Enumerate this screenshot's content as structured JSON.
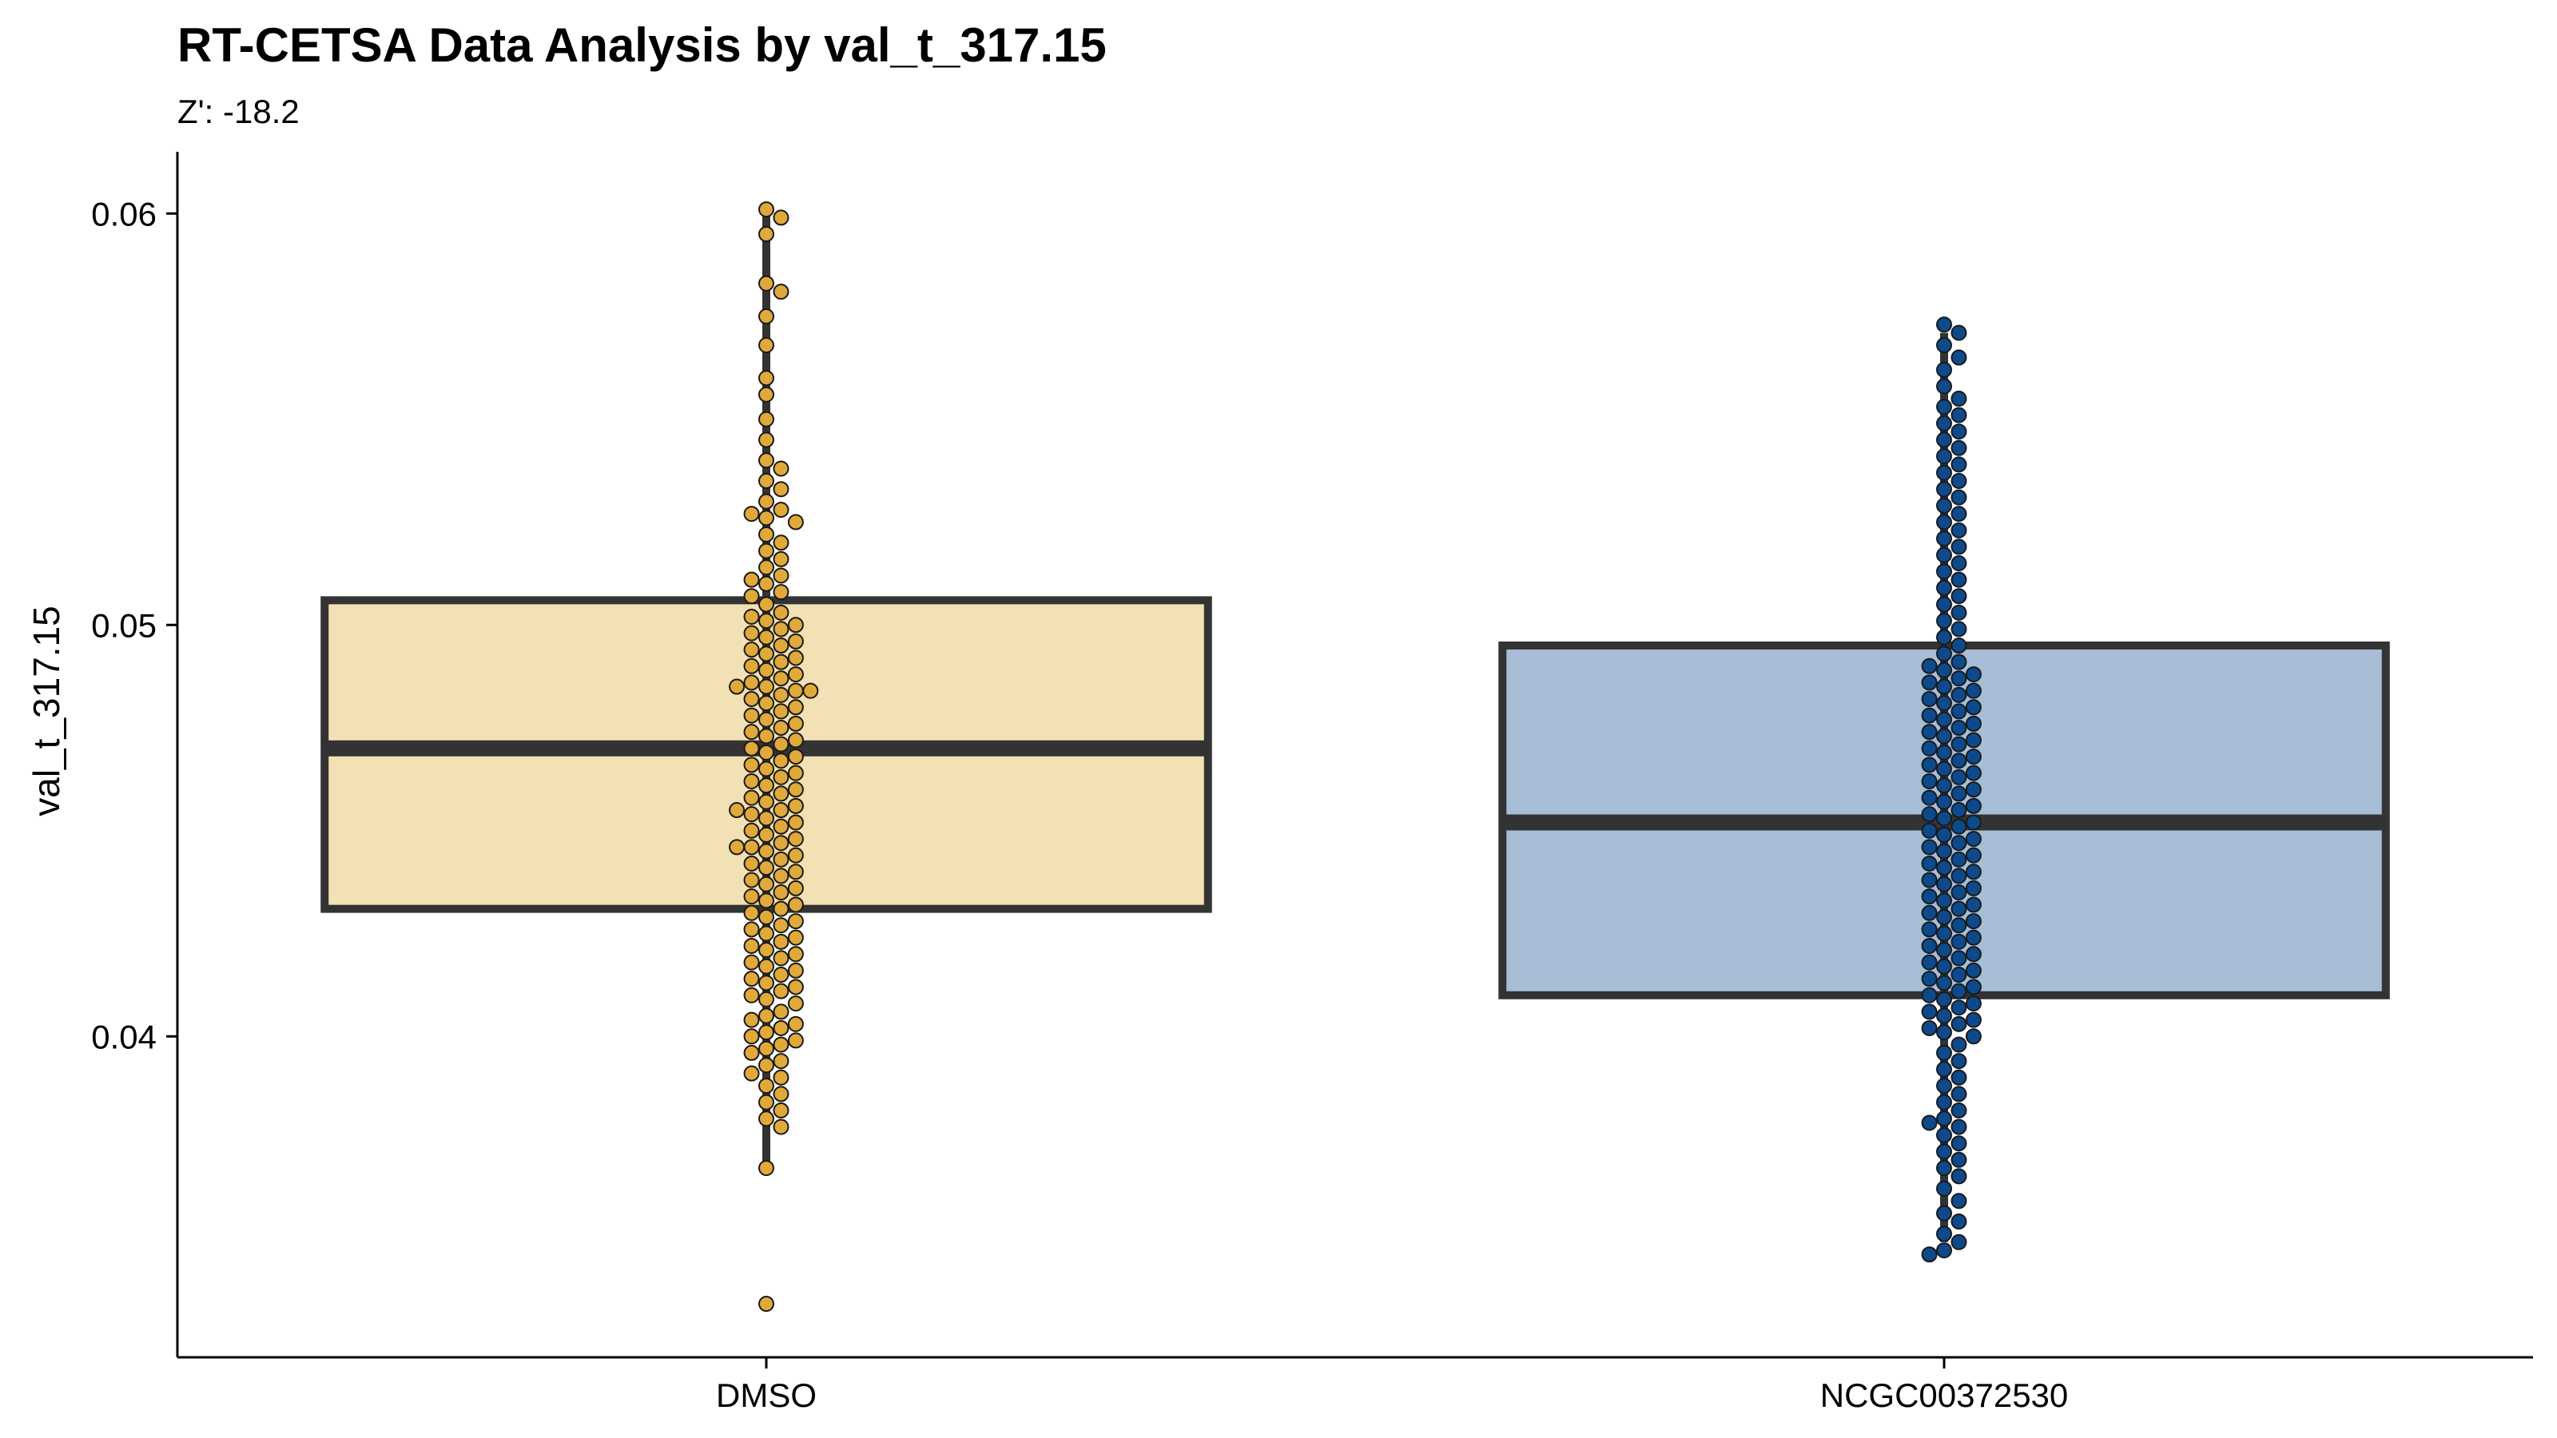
{
  "chart_data": {
    "type": "box",
    "title": "RT-CETSA Data Analysis by val_t_317.15",
    "subtitle": "Z': -18.2",
    "xlabel": "",
    "ylabel": "val_t_317.15",
    "ylim": [
      0.0322,
      0.0615
    ],
    "yticks": [
      0.04,
      0.05,
      0.06
    ],
    "ytick_labels": [
      "0.04",
      "0.05",
      "0.06"
    ],
    "categories": [
      "DMSO",
      "NCGC00372530"
    ],
    "grid": false,
    "legend": "none",
    "colors": {
      "DMSO_fill": "#f2e1b4",
      "DMSO_point": "#e0a93a",
      "NCGC00372530_fill": "#a7bdd6",
      "NCGC00372530_point": "#0d4a8c",
      "box_line": "#333333"
    },
    "boxes": [
      {
        "name": "DMSO",
        "whisker_low": 0.0368,
        "q1": 0.0431,
        "median": 0.047,
        "q3": 0.0506,
        "whisker_high": 0.06
      },
      {
        "name": "NCGC00372530",
        "whisker_low": 0.035,
        "q1": 0.041,
        "median": 0.0452,
        "q3": 0.0495,
        "whisker_high": 0.0571
      }
    ],
    "points": {
      "DMSO": [
        0.0601,
        0.0599,
        0.0595,
        0.0583,
        0.0581,
        0.0575,
        0.0568,
        0.056,
        0.0556,
        0.055,
        0.0545,
        0.054,
        0.0538,
        0.0535,
        0.0533,
        0.053,
        0.0528,
        0.0527,
        0.0526,
        0.0525,
        0.0522,
        0.052,
        0.0518,
        0.0516,
        0.0514,
        0.0512,
        0.0511,
        0.051,
        0.0508,
        0.0507,
        0.0505,
        0.0503,
        0.0502,
        0.0501,
        0.05,
        0.0499,
        0.0498,
        0.0497,
        0.0496,
        0.0495,
        0.0494,
        0.0493,
        0.0492,
        0.0491,
        0.049,
        0.0489,
        0.0488,
        0.0487,
        0.0486,
        0.0485,
        0.0485,
        0.0484,
        0.0484,
        0.0483,
        0.0482,
        0.0481,
        0.048,
        0.0479,
        0.0478,
        0.0477,
        0.0476,
        0.0475,
        0.0474,
        0.0473,
        0.0472,
        0.0471,
        0.047,
        0.0469,
        0.0468,
        0.0467,
        0.0466,
        0.0465,
        0.0464,
        0.0463,
        0.0462,
        0.0461,
        0.046,
        0.0459,
        0.0458,
        0.0457,
        0.0456,
        0.0455,
        0.0455,
        0.0454,
        0.0453,
        0.0452,
        0.0451,
        0.045,
        0.0449,
        0.0448,
        0.0447,
        0.0446,
        0.0446,
        0.0445,
        0.0444,
        0.0443,
        0.0442,
        0.0441,
        0.044,
        0.0439,
        0.0438,
        0.0437,
        0.0436,
        0.0435,
        0.0434,
        0.0433,
        0.0432,
        0.0431,
        0.043,
        0.0429,
        0.0428,
        0.0427,
        0.0426,
        0.0425,
        0.0424,
        0.0423,
        0.0422,
        0.0421,
        0.042,
        0.0419,
        0.0418,
        0.0417,
        0.0416,
        0.0415,
        0.0414,
        0.0413,
        0.0412,
        0.0411,
        0.041,
        0.0409,
        0.0408,
        0.0406,
        0.0405,
        0.0404,
        0.0403,
        0.0402,
        0.0401,
        0.04,
        0.0399,
        0.0398,
        0.0397,
        0.0396,
        0.0394,
        0.0393,
        0.0391,
        0.039,
        0.0388,
        0.0386,
        0.0384,
        0.0382,
        0.038,
        0.0378,
        0.0368,
        0.0335
      ],
      "NCGC00372530": [
        0.0573,
        0.0571,
        0.0568,
        0.0565,
        0.0562,
        0.0558,
        0.0555,
        0.0553,
        0.0551,
        0.0549,
        0.0547,
        0.0545,
        0.0543,
        0.0541,
        0.0539,
        0.0537,
        0.0535,
        0.0533,
        0.0531,
        0.0529,
        0.0527,
        0.0525,
        0.0523,
        0.0521,
        0.0519,
        0.0517,
        0.0515,
        0.0513,
        0.0511,
        0.0509,
        0.0507,
        0.0505,
        0.0503,
        0.0501,
        0.0499,
        0.0497,
        0.0495,
        0.0493,
        0.0491,
        0.049,
        0.0489,
        0.0488,
        0.0487,
        0.0486,
        0.0485,
        0.0484,
        0.0483,
        0.0482,
        0.0481,
        0.048,
        0.0479,
        0.0478,
        0.0477,
        0.0476,
        0.0475,
        0.0474,
        0.0473,
        0.0472,
        0.0471,
        0.047,
        0.0469,
        0.0468,
        0.0467,
        0.0466,
        0.0465,
        0.0464,
        0.0463,
        0.0462,
        0.0461,
        0.046,
        0.0459,
        0.0458,
        0.0457,
        0.0456,
        0.0455,
        0.0454,
        0.0453,
        0.0452,
        0.0451,
        0.045,
        0.0449,
        0.0448,
        0.0447,
        0.0446,
        0.0445,
        0.0444,
        0.0443,
        0.0442,
        0.0441,
        0.044,
        0.0439,
        0.0438,
        0.0437,
        0.0436,
        0.0435,
        0.0434,
        0.0433,
        0.0432,
        0.0431,
        0.043,
        0.0429,
        0.0428,
        0.0427,
        0.0426,
        0.0425,
        0.0424,
        0.0423,
        0.0422,
        0.0421,
        0.042,
        0.0419,
        0.0418,
        0.0417,
        0.0416,
        0.0415,
        0.0414,
        0.0413,
        0.0412,
        0.0411,
        0.041,
        0.0409,
        0.0408,
        0.0407,
        0.0406,
        0.0405,
        0.0404,
        0.0403,
        0.0402,
        0.0401,
        0.04,
        0.0398,
        0.0396,
        0.0394,
        0.0392,
        0.039,
        0.0388,
        0.0386,
        0.0384,
        0.0382,
        0.038,
        0.0379,
        0.0378,
        0.0376,
        0.0374,
        0.0372,
        0.037,
        0.0368,
        0.0366,
        0.0363,
        0.036,
        0.0357,
        0.0355,
        0.0352,
        0.035,
        0.0348,
        0.0347
      ]
    }
  }
}
